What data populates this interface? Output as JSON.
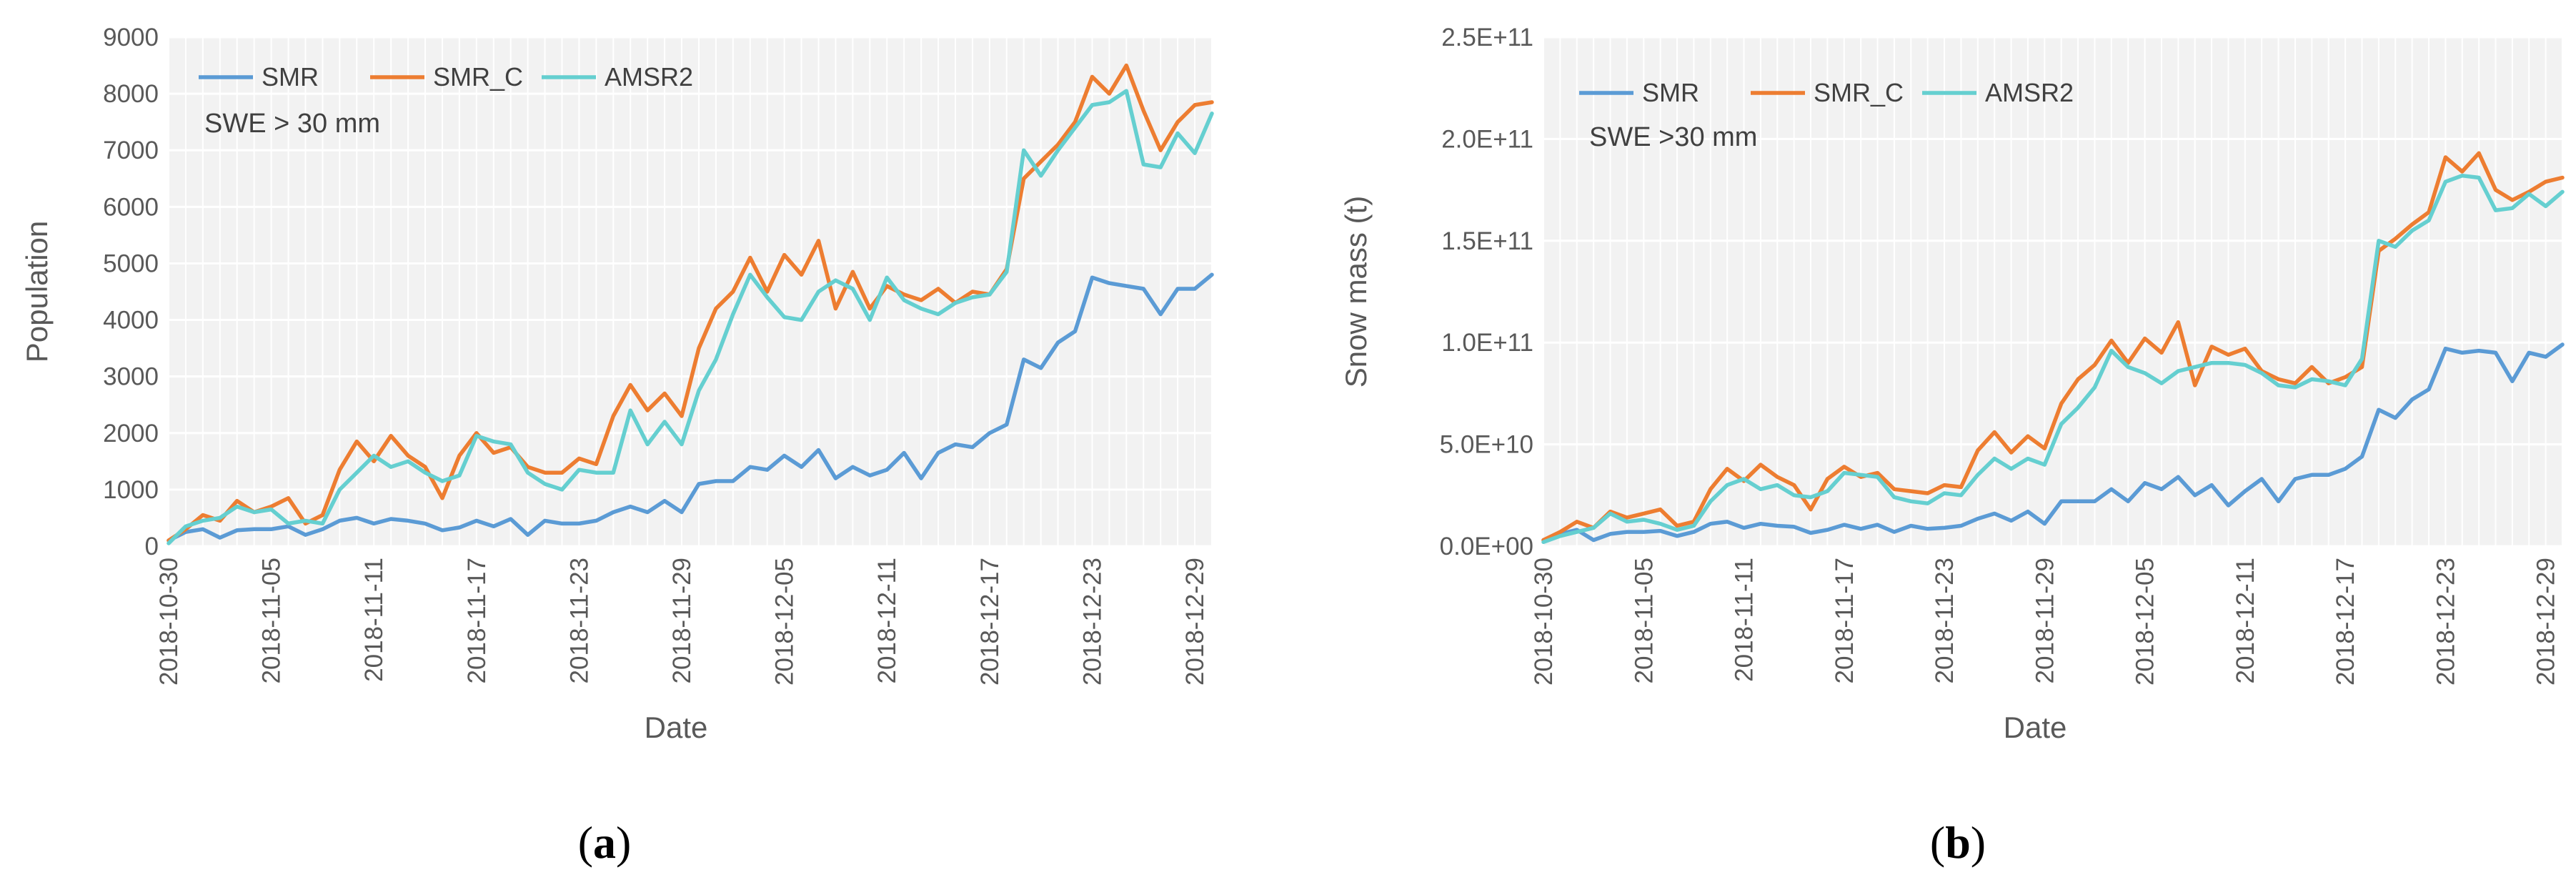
{
  "chart_data": [
    {
      "type": "line",
      "panel_label_open": "(",
      "panel_label_letter": "a",
      "panel_label_close": ")",
      "annotation": "SWE > 30 mm",
      "xlabel": "Date",
      "ylabel": "Population",
      "ylim": [
        0,
        9000
      ],
      "ytick_labels": [
        "0",
        "1000",
        "2000",
        "3000",
        "4000",
        "5000",
        "6000",
        "7000",
        "8000",
        "9000"
      ],
      "xtick_labels": [
        "2018-10-30",
        "2018-11-05",
        "2018-11-11",
        "2018-11-17",
        "2018-11-23",
        "2018-11-29",
        "2018-12-05",
        "2018-12-11",
        "2018-12-17",
        "2018-12-23",
        "2018-12-29"
      ],
      "grid": true,
      "legend_position": "top-left",
      "x_start": "2018-10-30",
      "x_end": "2018-12-30",
      "series": [
        {
          "name": "SMR",
          "color": "#5B9BD5",
          "values": [
            100,
            250,
            300,
            150,
            280,
            300,
            300,
            350,
            200,
            300,
            450,
            500,
            400,
            480,
            450,
            400,
            280,
            330,
            450,
            350,
            480,
            200,
            450,
            400,
            400,
            450,
            600,
            700,
            600,
            800,
            600,
            1100,
            1150,
            1150,
            1400,
            1350,
            1600,
            1400,
            1700,
            1200,
            1400,
            1250,
            1350,
            1650,
            1200,
            1650,
            1800,
            1750,
            2000,
            2150,
            3300,
            3150,
            3600,
            3800,
            4750,
            4650,
            4600,
            4550,
            4100,
            4550,
            4550,
            4800
          ]
        },
        {
          "name": "SMR_C",
          "color": "#ED7D31",
          "values": [
            100,
            300,
            550,
            450,
            800,
            600,
            700,
            850,
            400,
            550,
            1350,
            1850,
            1500,
            1950,
            1600,
            1400,
            850,
            1600,
            2000,
            1650,
            1750,
            1400,
            1300,
            1300,
            1550,
            1450,
            2300,
            2850,
            2400,
            2700,
            2300,
            3500,
            4200,
            4500,
            5100,
            4500,
            5150,
            4800,
            5400,
            4200,
            4850,
            4200,
            4600,
            4450,
            4350,
            4550,
            4300,
            4500,
            4450,
            4900,
            6500,
            6800,
            7100,
            7500,
            8300,
            8000,
            8500,
            7700,
            7000,
            7500,
            7800,
            7850
          ]
        },
        {
          "name": "AMSR2",
          "color": "#65CFD0",
          "values": [
            50,
            350,
            450,
            500,
            700,
            600,
            650,
            400,
            450,
            400,
            1000,
            1300,
            1600,
            1400,
            1500,
            1300,
            1150,
            1250,
            1950,
            1850,
            1800,
            1300,
            1100,
            1000,
            1350,
            1300,
            1300,
            2400,
            1800,
            2200,
            1800,
            2750,
            3300,
            4100,
            4800,
            4400,
            4050,
            4000,
            4500,
            4700,
            4550,
            4000,
            4750,
            4350,
            4200,
            4100,
            4300,
            4400,
            4450,
            4850,
            7000,
            6550,
            7000,
            7400,
            7800,
            7850,
            8050,
            6750,
            6700,
            7300,
            6950,
            7650
          ]
        }
      ]
    },
    {
      "type": "line",
      "panel_label_open": "(",
      "panel_label_letter": "b",
      "panel_label_close": ")",
      "annotation": "SWE >30 mm",
      "xlabel": "Date",
      "ylabel": "Snow mass (t)",
      "ylim": [
        0,
        250000000000
      ],
      "ytick_labels": [
        "0.0E+00",
        "5.0E+10",
        "1.0E+11",
        "1.5E+11",
        "2.0E+11",
        "2.5E+11"
      ],
      "xtick_labels": [
        "2018-10-30",
        "2018-11-05",
        "2018-11-11",
        "2018-11-17",
        "2018-11-23",
        "2018-11-29",
        "2018-12-05",
        "2018-12-11",
        "2018-12-17",
        "2018-12-23",
        "2018-12-29"
      ],
      "grid": true,
      "legend_position": "top-left",
      "x_start": "2018-10-30",
      "x_end": "2018-12-30",
      "series": [
        {
          "name": "SMR",
          "color": "#5B9BD5",
          "values": [
            3000000000,
            6000000000,
            8000000000,
            3000000000,
            6000000000,
            7000000000,
            7000000000,
            7500000000,
            5000000000,
            7000000000,
            11000000000,
            12000000000,
            9000000000,
            11000000000,
            10000000000,
            9500000000,
            6500000000,
            8000000000,
            10500000000,
            8500000000,
            10500000000,
            7000000000,
            10000000000,
            8500000000,
            9000000000,
            10000000000,
            13500000000,
            16000000000,
            12500000000,
            17000000000,
            11000000000,
            22000000000,
            22000000000,
            22000000000,
            28000000000,
            22000000000,
            31000000000,
            28000000000,
            34000000000,
            25000000000,
            30000000000,
            20000000000,
            27000000000,
            33000000000,
            22000000000,
            33000000000,
            35000000000,
            35000000000,
            38000000000,
            44000000000,
            67000000000,
            63000000000,
            72000000000,
            77000000000,
            97000000000,
            95000000000,
            96000000000,
            95000000000,
            81000000000,
            95000000000,
            93000000000,
            99000000000
          ]
        },
        {
          "name": "SMR_C",
          "color": "#ED7D31",
          "values": [
            3000000000,
            7000000000,
            12000000000,
            9000000000,
            17000000000,
            14000000000,
            16000000000,
            18000000000,
            10000000000,
            12000000000,
            28000000000,
            38000000000,
            32000000000,
            40000000000,
            34000000000,
            30000000000,
            18000000000,
            33000000000,
            39000000000,
            34000000000,
            36000000000,
            28000000000,
            27000000000,
            26000000000,
            30000000000,
            29000000000,
            47000000000,
            56000000000,
            46000000000,
            54000000000,
            48000000000,
            70000000000,
            82000000000,
            89000000000,
            101000000000,
            90000000000,
            102000000000,
            95000000000,
            110000000000,
            79000000000,
            98000000000,
            94000000000,
            97000000000,
            86000000000,
            82000000000,
            80000000000,
            88000000000,
            80000000000,
            83000000000,
            88000000000,
            145000000000,
            151000000000,
            158000000000,
            164000000000,
            191000000000,
            184000000000,
            193000000000,
            175000000000,
            170000000000,
            174000000000,
            179000000000,
            181000000000
          ]
        },
        {
          "name": "AMSR2",
          "color": "#65CFD0",
          "values": [
            2000000000,
            5000000000,
            7000000000,
            9000000000,
            16000000000,
            12000000000,
            13000000000,
            11000000000,
            8000000000,
            10000000000,
            22000000000,
            30000000000,
            33000000000,
            28000000000,
            30000000000,
            25000000000,
            24000000000,
            27000000000,
            36000000000,
            35000000000,
            34000000000,
            24000000000,
            22000000000,
            21000000000,
            26000000000,
            25000000000,
            35000000000,
            43000000000,
            38000000000,
            43000000000,
            40000000000,
            60000000000,
            68000000000,
            78000000000,
            96000000000,
            88000000000,
            85000000000,
            80000000000,
            86000000000,
            88000000000,
            90000000000,
            90000000000,
            89000000000,
            85000000000,
            79000000000,
            78000000000,
            82000000000,
            81000000000,
            79000000000,
            92000000000,
            150000000000,
            147000000000,
            155000000000,
            160000000000,
            179000000000,
            182000000000,
            181000000000,
            165000000000,
            166000000000,
            173000000000,
            167000000000,
            174000000000
          ]
        }
      ]
    }
  ]
}
